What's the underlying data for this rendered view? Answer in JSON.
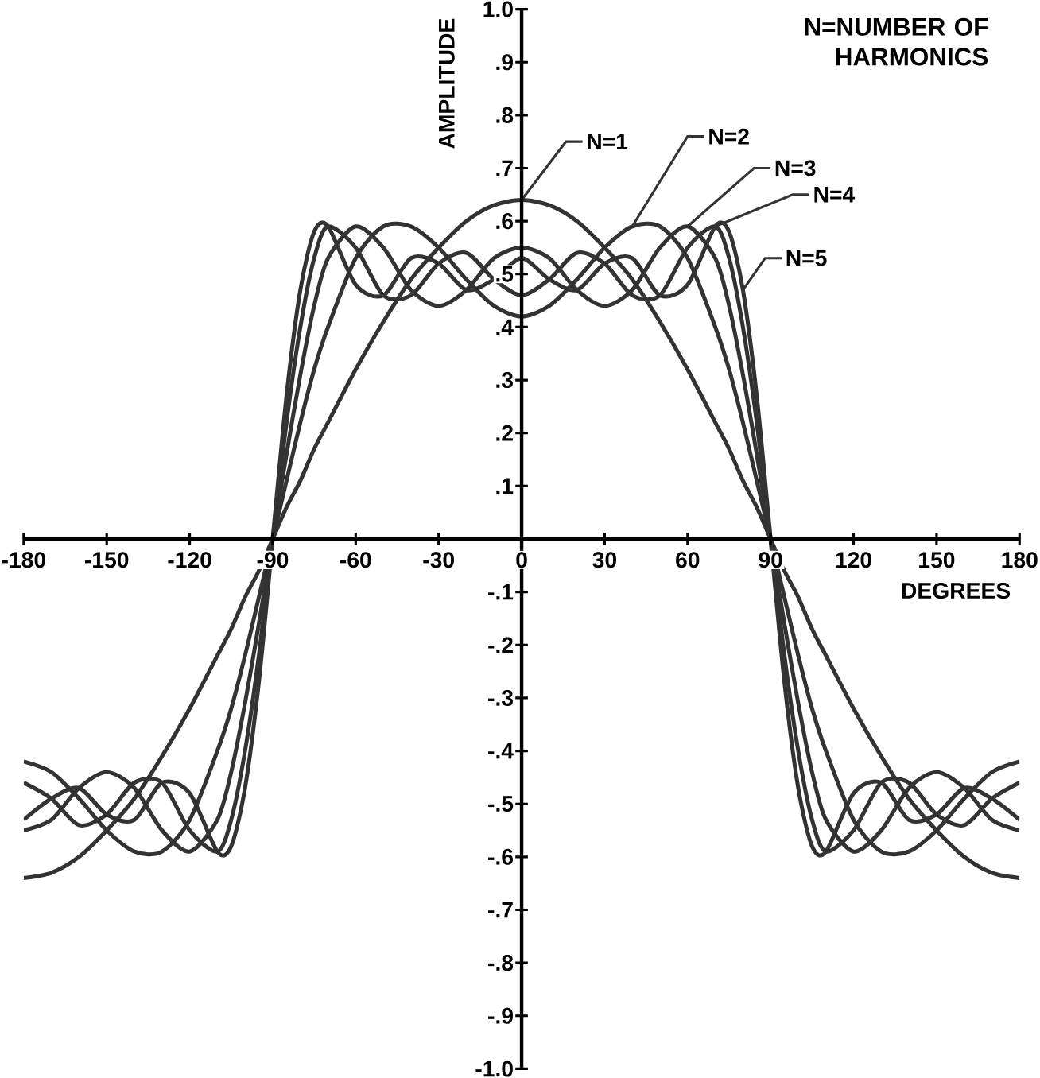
{
  "chart_data": {
    "type": "line",
    "xlabel": "DEGREES",
    "ylabel": "AMPLITUDE",
    "annotations": [
      "N=NUMBER OF HARMONICS"
    ],
    "x": [
      -180,
      -170,
      -160,
      -150,
      -140,
      -130,
      -120,
      -110,
      -105,
      -100,
      -95,
      -90,
      -85,
      -80,
      -75,
      -70,
      -60,
      -50,
      -40,
      -30,
      -20,
      -10,
      0,
      10,
      20,
      30,
      40,
      50,
      60,
      70,
      75,
      80,
      85,
      90,
      95,
      100,
      105,
      110,
      120,
      130,
      140,
      150,
      160,
      170,
      180
    ],
    "series": [
      {
        "name": "N=1",
        "color": "#333333",
        "values": [
          -0.64,
          -0.63,
          -0.6,
          -0.55,
          -0.49,
          -0.41,
          -0.32,
          -0.22,
          -0.17,
          -0.11,
          -0.06,
          0,
          0.06,
          0.11,
          0.17,
          0.22,
          0.32,
          0.41,
          0.49,
          0.55,
          0.6,
          0.63,
          0.64,
          0.63,
          0.6,
          0.55,
          0.49,
          0.41,
          0.32,
          0.22,
          0.17,
          0.11,
          0.06,
          0,
          -0.06,
          -0.11,
          -0.17,
          -0.22,
          -0.32,
          -0.41,
          -0.49,
          -0.55,
          -0.6,
          -0.63,
          -0.64
        ]
      },
      {
        "name": "N=2",
        "color": "#333333",
        "values": [
          -0.42,
          -0.44,
          -0.49,
          -0.55,
          -0.59,
          -0.59,
          -0.53,
          -0.4,
          -0.32,
          -0.22,
          -0.11,
          0,
          0.11,
          0.22,
          0.32,
          0.4,
          0.53,
          0.59,
          0.59,
          0.55,
          0.49,
          0.44,
          0.42,
          0.44,
          0.49,
          0.55,
          0.59,
          0.59,
          0.53,
          0.4,
          0.32,
          0.22,
          0.11,
          0,
          -0.11,
          -0.22,
          -0.32,
          -0.4,
          -0.53,
          -0.59,
          -0.59,
          -0.55,
          -0.49,
          -0.44,
          -0.42
        ]
      },
      {
        "name": "N=3",
        "color": "#333333",
        "values": [
          -0.55,
          -0.53,
          -0.47,
          -0.44,
          -0.47,
          -0.55,
          -0.59,
          -0.53,
          -0.44,
          -0.31,
          -0.16,
          0,
          0.16,
          0.31,
          0.44,
          0.53,
          0.59,
          0.55,
          0.47,
          0.44,
          0.47,
          0.53,
          0.55,
          0.53,
          0.47,
          0.44,
          0.47,
          0.55,
          0.59,
          0.53,
          0.44,
          0.31,
          0.16,
          0,
          -0.16,
          -0.31,
          -0.44,
          -0.53,
          -0.59,
          -0.55,
          -0.47,
          -0.44,
          -0.47,
          -0.53,
          -0.55
        ]
      },
      {
        "name": "N=4",
        "color": "#333333",
        "values": [
          -0.46,
          -0.49,
          -0.54,
          -0.52,
          -0.46,
          -0.46,
          -0.55,
          -0.59,
          -0.53,
          -0.4,
          -0.22,
          0,
          0.22,
          0.4,
          0.53,
          0.59,
          0.55,
          0.46,
          0.46,
          0.52,
          0.54,
          0.49,
          0.46,
          0.49,
          0.54,
          0.52,
          0.46,
          0.46,
          0.55,
          0.59,
          0.53,
          0.4,
          0.22,
          0,
          -0.22,
          -0.4,
          -0.53,
          -0.59,
          -0.55,
          -0.46,
          -0.46,
          -0.52,
          -0.54,
          -0.49,
          -0.46
        ]
      },
      {
        "name": "N=5",
        "color": "#333333",
        "values": [
          -0.53,
          -0.49,
          -0.47,
          -0.52,
          -0.53,
          -0.46,
          -0.48,
          -0.59,
          -0.58,
          -0.47,
          -0.27,
          0,
          0.27,
          0.47,
          0.58,
          0.59,
          0.48,
          0.46,
          0.53,
          0.52,
          0.47,
          0.49,
          0.53,
          0.49,
          0.47,
          0.52,
          0.53,
          0.46,
          0.48,
          0.59,
          0.58,
          0.47,
          0.27,
          0,
          -0.27,
          -0.47,
          -0.58,
          -0.59,
          -0.48,
          -0.46,
          -0.53,
          -0.52,
          -0.47,
          -0.49,
          -0.53
        ]
      }
    ],
    "xlim": [
      -180,
      180
    ],
    "ylim": [
      -1,
      1
    ],
    "xticks": [
      -180,
      -150,
      -120,
      -90,
      -60,
      -30,
      {
        "value": 0,
        "label": "0"
      },
      30,
      60,
      90,
      120,
      150,
      180
    ],
    "yticks": [
      {
        "value": -1,
        "label": "-1.0"
      },
      {
        "value": -0.9,
        "label": "-.9"
      },
      {
        "value": -0.8,
        "label": "-.8"
      },
      {
        "value": -0.7,
        "label": "-.7"
      },
      {
        "value": -0.6,
        "label": "-.6"
      },
      {
        "value": -0.5,
        "label": "-.5"
      },
      {
        "value": -0.4,
        "label": "-.4"
      },
      {
        "value": -0.3,
        "label": "-.3"
      },
      {
        "value": -0.2,
        "label": "-.2"
      },
      {
        "value": -0.1,
        "label": "-.1"
      },
      {
        "value": 0.1,
        "label": ".1"
      },
      {
        "value": 0.2,
        "label": ".2"
      },
      {
        "value": 0.3,
        "label": ".3"
      },
      {
        "value": 0.4,
        "label": ".4"
      },
      {
        "value": 0.5,
        "label": ".5"
      },
      {
        "value": 0.6,
        "label": ".6"
      },
      {
        "value": 0.7,
        "label": ".7"
      },
      {
        "value": 0.8,
        "label": ".8"
      },
      {
        "value": 0.9,
        "label": ".9"
      },
      {
        "value": 1,
        "label": "1.0"
      }
    ],
    "grid": false,
    "legend": false,
    "marker": "none",
    "line_style": "solid"
  }
}
